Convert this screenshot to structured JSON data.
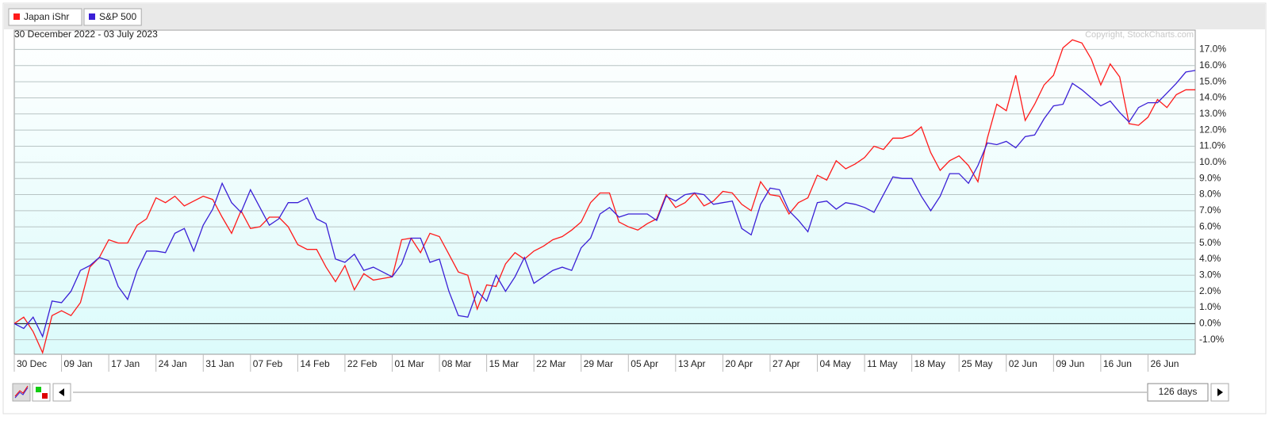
{
  "chart_data": {
    "type": "line",
    "subtitle": "30 December 2022 - 03 July 2023",
    "annotation": "Copyright, StockCharts.com",
    "range_label": "126 days",
    "grid": true,
    "categories": [
      "30 Dec",
      null,
      null,
      null,
      null,
      "09 Jan",
      null,
      null,
      null,
      null,
      "17 Jan",
      null,
      null,
      null,
      null,
      "24 Jan",
      null,
      null,
      null,
      null,
      "31 Jan",
      null,
      null,
      null,
      null,
      "07 Feb",
      null,
      null,
      null,
      null,
      "14 Feb",
      null,
      null,
      null,
      null,
      "22 Feb",
      null,
      null,
      null,
      null,
      "01 Mar",
      null,
      null,
      null,
      null,
      "08 Mar",
      null,
      null,
      null,
      null,
      "15 Mar",
      null,
      null,
      null,
      null,
      "22 Mar",
      null,
      null,
      null,
      null,
      "29 Mar",
      null,
      null,
      null,
      null,
      "05 Apr",
      null,
      null,
      null,
      null,
      "13 Apr",
      null,
      null,
      null,
      null,
      "20 Apr",
      null,
      null,
      null,
      null,
      "27 Apr",
      null,
      null,
      null,
      null,
      "04 May",
      null,
      null,
      null,
      null,
      "11 May",
      null,
      null,
      null,
      null,
      "18 May",
      null,
      null,
      null,
      null,
      "25 May",
      null,
      null,
      null,
      null,
      "02 Jun",
      null,
      null,
      null,
      null,
      "09 Jun",
      null,
      null,
      null,
      null,
      "16 Jun",
      null,
      null,
      null,
      null,
      "26 Jun",
      null,
      null,
      null,
      null,
      null
    ],
    "series": [
      {
        "name": "Japan iShr",
        "color": "#ff1a1a",
        "values": [
          0,
          0.4,
          -0.5,
          -1.8,
          0.5,
          0.8,
          0.5,
          1.3,
          3.5,
          4.1,
          5.2,
          5.0,
          5.0,
          6.1,
          6.5,
          7.8,
          7.5,
          7.9,
          7.3,
          7.6,
          7.9,
          7.7,
          6.6,
          5.6,
          7.0,
          5.9,
          6.0,
          6.6,
          6.6,
          6.0,
          4.9,
          4.6,
          4.6,
          3.5,
          2.6,
          3.6,
          2.1,
          3.1,
          2.7,
          2.8,
          2.9,
          5.2,
          5.3,
          4.4,
          5.6,
          5.4,
          4.3,
          3.2,
          3.0,
          0.9,
          2.4,
          2.3,
          3.7,
          4.4,
          4.0,
          4.5,
          4.8,
          5.2,
          5.4,
          5.8,
          6.3,
          7.5,
          8.1,
          8.1,
          6.3,
          6.0,
          5.8,
          6.2,
          6.5,
          8.0,
          7.2,
          7.5,
          8.1,
          7.3,
          7.6,
          8.2,
          8.1,
          7.4,
          7.0,
          8.8,
          8.0,
          7.9,
          6.8,
          7.5,
          7.8,
          9.2,
          8.9,
          10.1,
          9.6,
          9.9,
          10.3,
          11.0,
          10.8,
          11.5,
          11.5,
          11.7,
          12.2,
          10.6,
          9.5,
          10.1,
          10.4,
          9.8,
          8.8,
          11.5,
          13.6,
          13.2,
          15.4,
          12.6,
          13.6,
          14.8,
          15.4,
          17.1,
          17.6,
          17.4,
          16.4,
          14.8,
          16.1,
          15.3,
          12.4,
          12.3,
          12.8,
          13.9,
          13.4,
          14.2,
          14.5,
          14.5
        ]
      },
      {
        "name": "S&P 500",
        "color": "#3a1fd6",
        "values": [
          0,
          -0.3,
          0.4,
          -0.8,
          1.4,
          1.3,
          2.0,
          3.3,
          3.6,
          4.1,
          3.9,
          2.3,
          1.5,
          3.3,
          4.5,
          4.5,
          4.4,
          5.6,
          5.9,
          4.5,
          6.1,
          7.1,
          8.7,
          7.5,
          6.9,
          8.3,
          7.2,
          6.1,
          6.5,
          7.5,
          7.5,
          7.8,
          6.5,
          6.2,
          4.0,
          3.8,
          4.3,
          3.3,
          3.5,
          3.2,
          2.9,
          3.7,
          5.3,
          5.3,
          3.8,
          4.0,
          2.0,
          0.5,
          0.4,
          2.0,
          1.4,
          3.0,
          2.0,
          2.9,
          4.1,
          2.5,
          2.9,
          3.3,
          3.5,
          3.3,
          4.7,
          5.3,
          6.8,
          7.2,
          6.6,
          6.8,
          6.8,
          6.8,
          6.4,
          7.9,
          7.6,
          8.0,
          8.1,
          8.0,
          7.4,
          7.5,
          7.6,
          5.9,
          5.5,
          7.4,
          8.4,
          8.3,
          7.0,
          6.4,
          5.7,
          7.5,
          7.6,
          7.1,
          7.5,
          7.4,
          7.2,
          6.9,
          8.0,
          9.1,
          9.0,
          9.0,
          7.9,
          7.0,
          7.9,
          9.3,
          9.3,
          8.7,
          9.8,
          11.2,
          11.1,
          11.3,
          10.9,
          11.6,
          11.7,
          12.7,
          13.5,
          13.6,
          14.9,
          14.5,
          14.0,
          13.5,
          13.8,
          13.1,
          12.5,
          13.4,
          13.7,
          13.7,
          14.3,
          14.9,
          15.6,
          15.7
        ]
      }
    ],
    "ylim": [
      -1.9,
      18.2
    ],
    "yticks": [
      {
        "value": -1,
        "label": "-1.0%"
      },
      {
        "value": 0,
        "label": "0.0%"
      },
      {
        "value": 1,
        "label": "1.0%"
      },
      {
        "value": 2,
        "label": "2.0%"
      },
      {
        "value": 3,
        "label": "3.0%"
      },
      {
        "value": 4,
        "label": "4.0%"
      },
      {
        "value": 5,
        "label": "5.0%"
      },
      {
        "value": 6,
        "label": "6.0%"
      },
      {
        "value": 7,
        "label": "7.0%"
      },
      {
        "value": 8,
        "label": "8.0%"
      },
      {
        "value": 9,
        "label": "9.0%"
      },
      {
        "value": 10,
        "label": "10.0%"
      },
      {
        "value": 11,
        "label": "11.0%"
      },
      {
        "value": 12,
        "label": "12.0%"
      },
      {
        "value": 13,
        "label": "13.0%"
      },
      {
        "value": 14,
        "label": "14.0%"
      },
      {
        "value": 15,
        "label": "15.0%"
      },
      {
        "value": 16,
        "label": "16.0%"
      },
      {
        "value": 17,
        "label": "17.0%"
      }
    ]
  }
}
